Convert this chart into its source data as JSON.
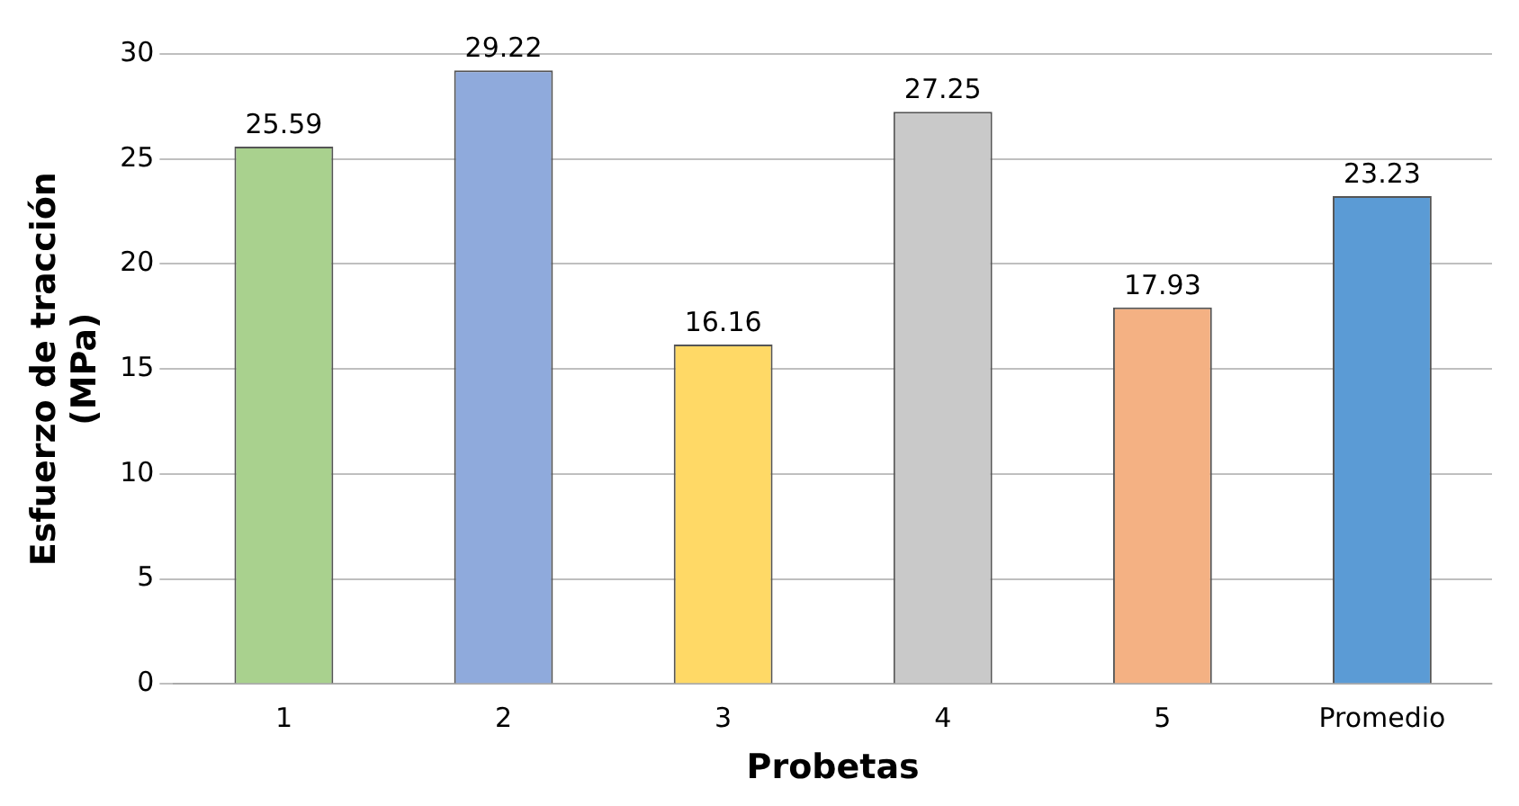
{
  "chart_data": {
    "type": "bar",
    "xlabel": "Probetas",
    "ylabel": "Esfuerzo de tracción\n(MPa)",
    "categories": [
      "1",
      "2",
      "3",
      "4",
      "5",
      "Promedio"
    ],
    "values": [
      25.59,
      29.22,
      16.16,
      27.25,
      17.93,
      23.23
    ],
    "colors": [
      "#a9d18e",
      "#8faadc",
      "#ffd966",
      "#c9c9c9",
      "#f4b183",
      "#5b9bd5"
    ],
    "ylim": [
      0,
      30
    ],
    "yticks": [
      0,
      5,
      10,
      15,
      20,
      25,
      30
    ],
    "grid": "y",
    "data_labels": true
  }
}
